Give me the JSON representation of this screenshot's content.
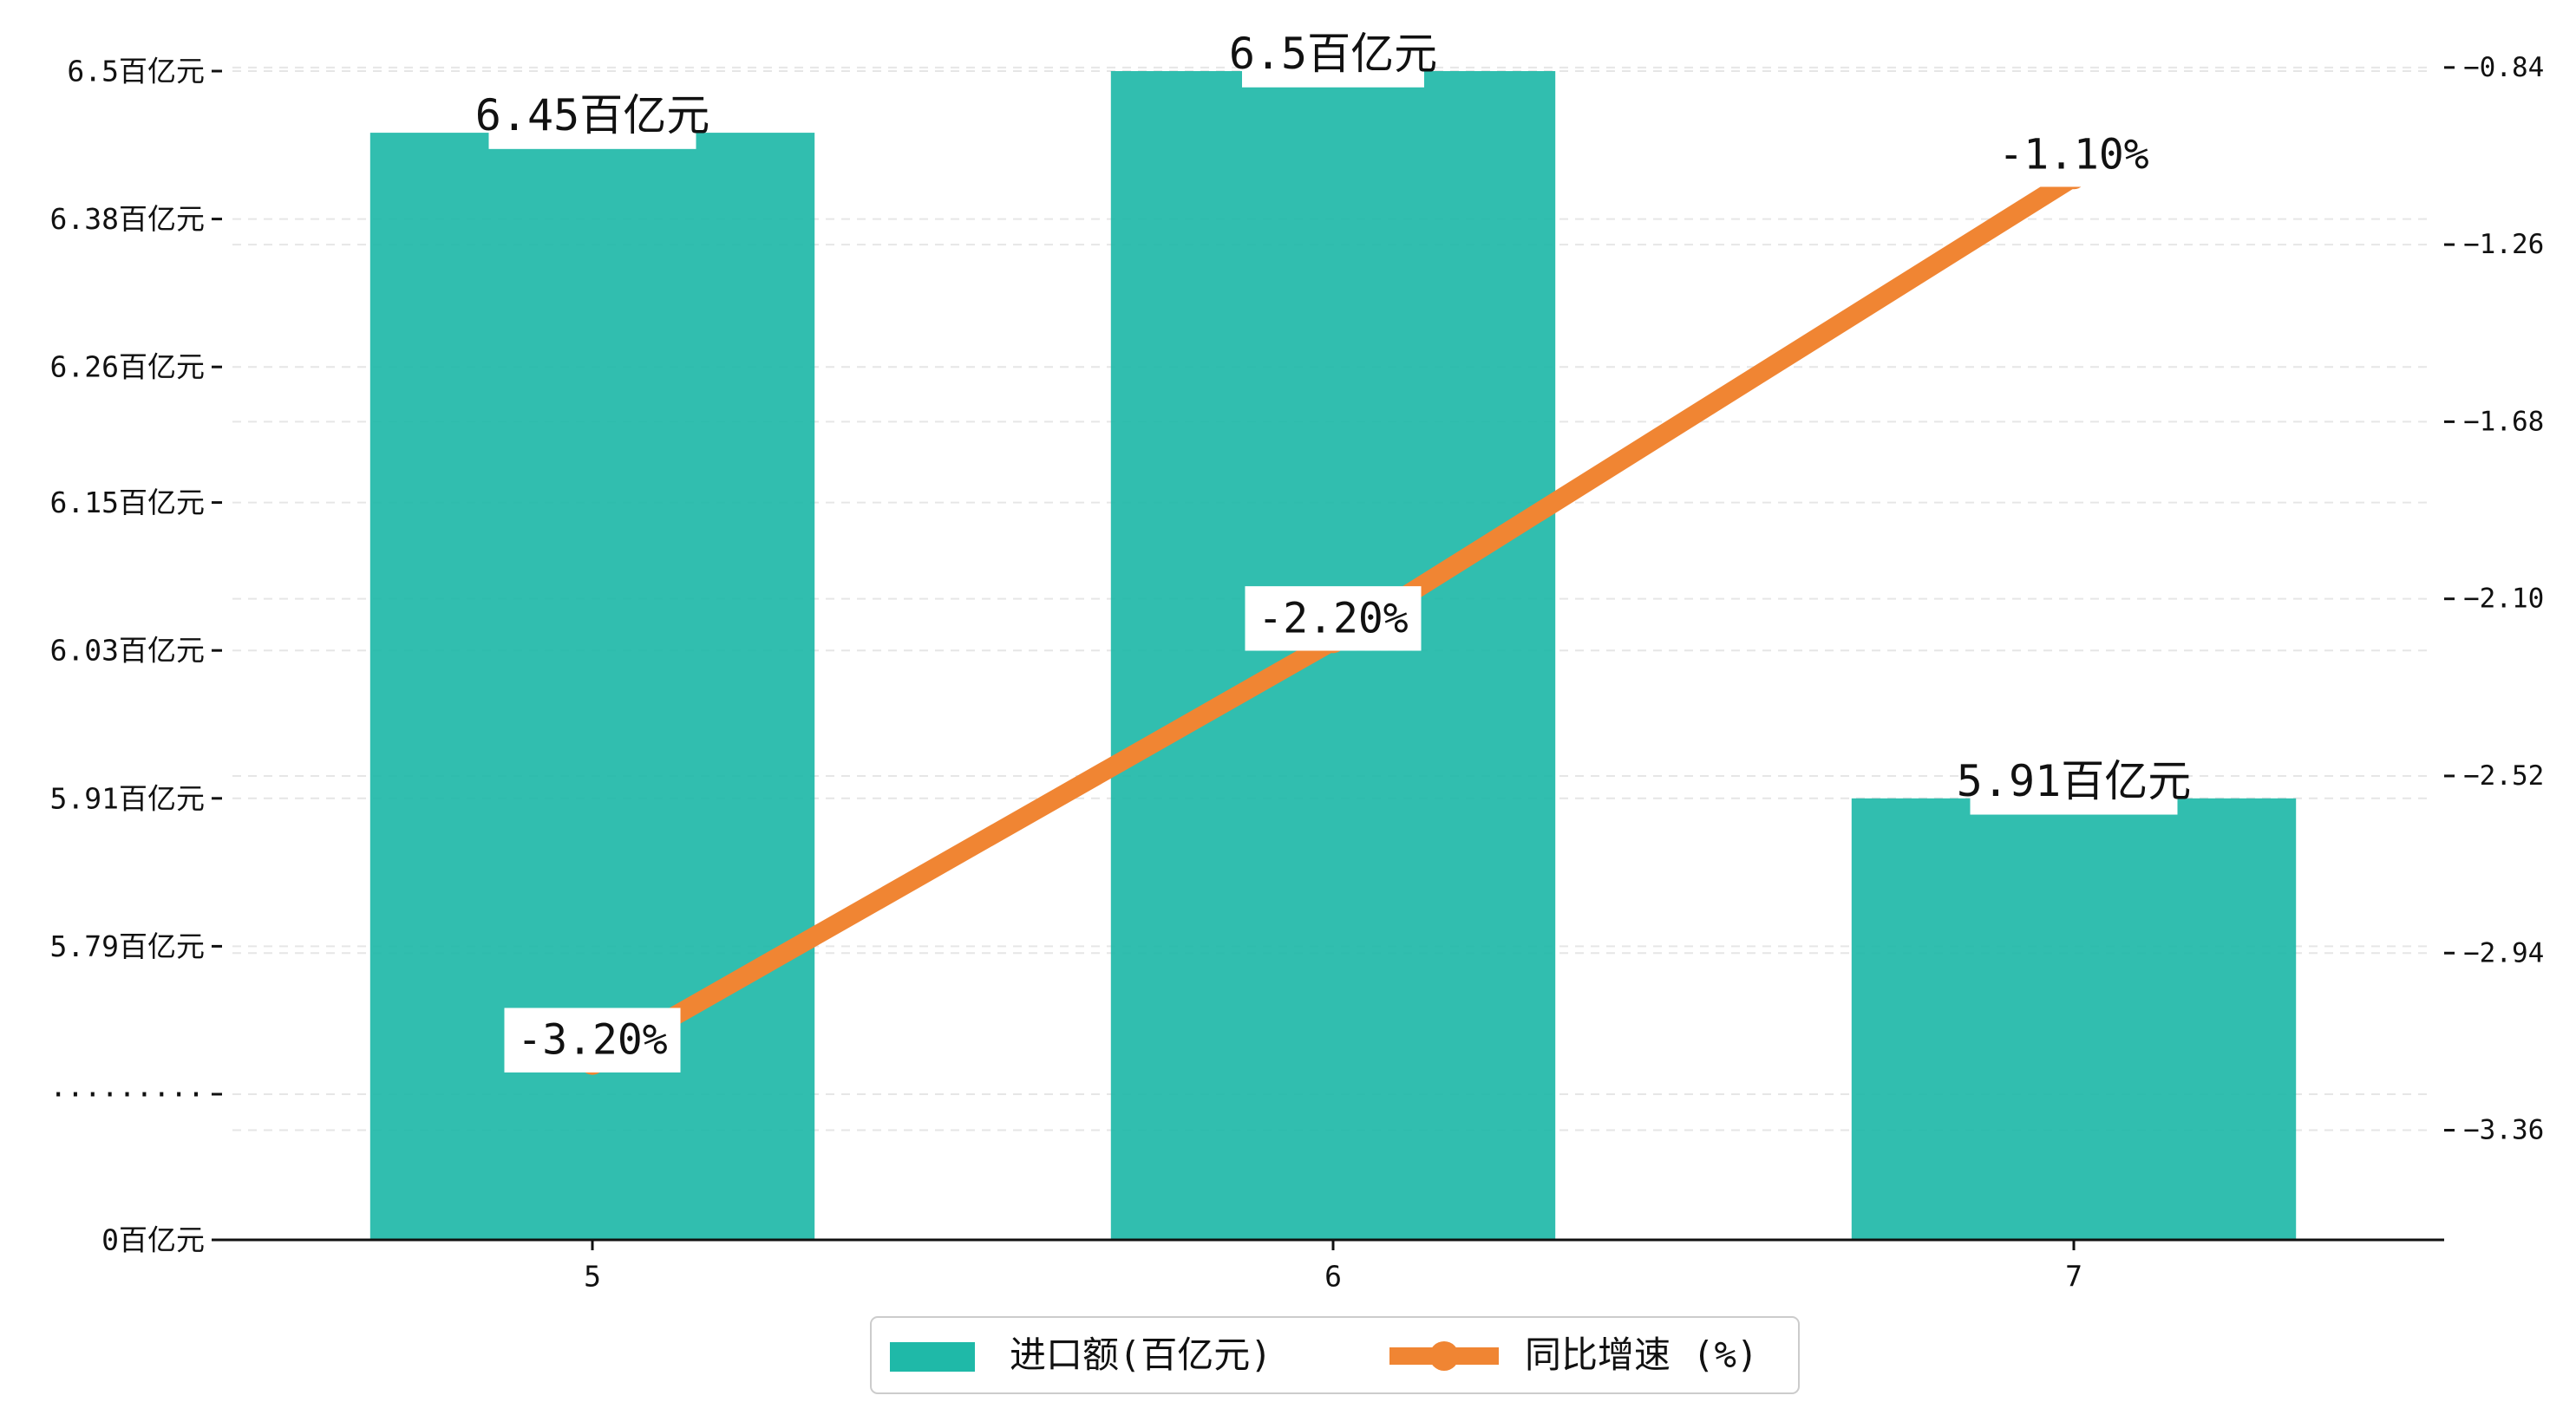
{
  "chart_data": {
    "type": "bar+line",
    "categories": [
      "5",
      "6",
      "7"
    ],
    "series": [
      {
        "name": "进口额(百亿元)",
        "type": "bar",
        "axis": "left",
        "values": [
          6.45,
          6.5,
          5.91
        ],
        "labels": [
          "6.45百亿元",
          "6.5百亿元",
          "5.91百亿元"
        ],
        "color": "#1fb9a8"
      },
      {
        "name": "同比增速 (%)",
        "type": "line",
        "axis": "right",
        "values": [
          -3.2,
          -2.2,
          -1.1
        ],
        "labels": [
          "-3.20%",
          "-2.20%",
          "-1.10%"
        ],
        "color": "#f08533"
      }
    ],
    "left_axis": {
      "broken": true,
      "ticks": [
        {
          "value": 0,
          "label": "0百亿元"
        },
        {
          "value": 5.67,
          "label": "·········"
        },
        {
          "value": 5.79,
          "label": "5.79百亿元"
        },
        {
          "value": 5.91,
          "label": "5.91百亿元"
        },
        {
          "value": 6.03,
          "label": "6.03百亿元"
        },
        {
          "value": 6.15,
          "label": "6.15百亿元"
        },
        {
          "value": 6.26,
          "label": "6.26百亿元"
        },
        {
          "value": 6.38,
          "label": "6.38百亿元"
        },
        {
          "value": 6.5,
          "label": "6.5百亿元"
        }
      ]
    },
    "right_axis": {
      "ylim": [
        -3.62,
        -0.68
      ],
      "ticks": [
        {
          "value": -0.84,
          "label": "−0.84"
        },
        {
          "value": -1.26,
          "label": "−1.26"
        },
        {
          "value": -1.68,
          "label": "−1.68"
        },
        {
          "value": -2.1,
          "label": "−2.10"
        },
        {
          "value": -2.52,
          "label": "−2.52"
        },
        {
          "value": -2.94,
          "label": "−2.94"
        },
        {
          "value": -3.36,
          "label": "−3.36"
        }
      ]
    },
    "grid": "horizontal-dashed",
    "legend": "bottom-center"
  }
}
